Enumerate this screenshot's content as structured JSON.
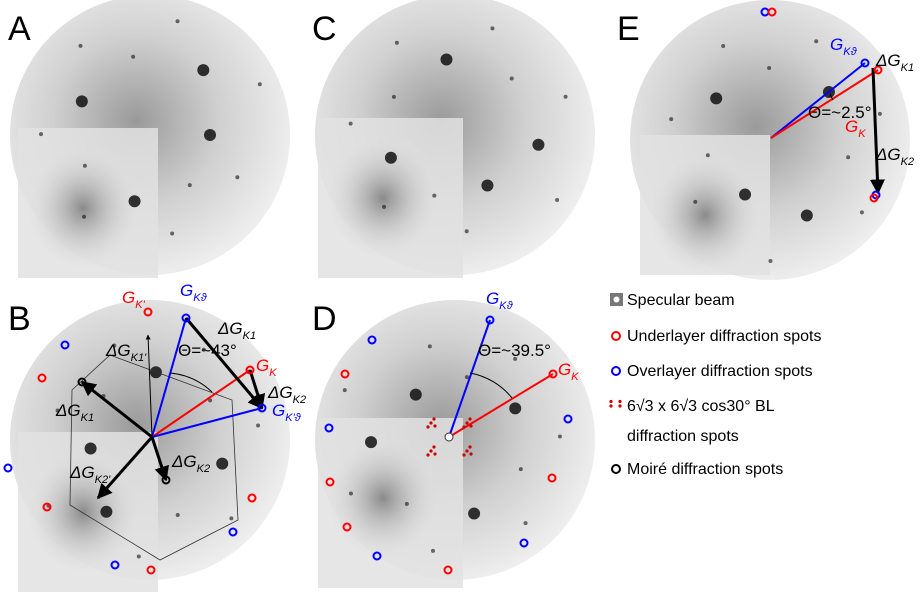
{
  "panels": [
    {
      "letter": "A",
      "labels": []
    },
    {
      "letter": "C",
      "labels": []
    },
    {
      "letter": "E",
      "labels": [
        {
          "main": "G",
          "sub": "Kϑ"
        },
        {
          "main": "ΔG",
          "sub": "K1"
        },
        {
          "text": "Θ=~2.5°"
        },
        {
          "main": "G",
          "sub": "K"
        },
        {
          "main": "ΔG",
          "sub": "K2"
        }
      ]
    },
    {
      "letter": "B",
      "labels": [
        {
          "main": "G",
          "sub": "K'"
        },
        {
          "main": "G",
          "sub": "Kϑ"
        },
        {
          "main": "ΔG",
          "sub": "K1"
        },
        {
          "main": "ΔG",
          "sub": "K1'"
        },
        {
          "text": "Θ=~43°"
        },
        {
          "main": "G",
          "sub": "K"
        },
        {
          "main": "ΔG",
          "sub": "K2"
        },
        {
          "main": "G",
          "sub": "K'ϑ"
        },
        {
          "main": "ΔG",
          "sub": "K1"
        },
        {
          "main": "ΔG",
          "sub": "K2'"
        },
        {
          "main": "ΔG",
          "sub": "K2"
        }
      ]
    },
    {
      "letter": "D",
      "labels": [
        {
          "main": "G",
          "sub": "Kϑ"
        },
        {
          "text": "Θ=~39.5°"
        },
        {
          "main": "G",
          "sub": "K"
        }
      ]
    }
  ],
  "legend": [
    {
      "text": "Specular beam"
    },
    {
      "text": "Underlayer diffraction spots"
    },
    {
      "text": "Overlayer diffraction spots"
    },
    {
      "text": "6√3 x 6√3 cos30° BL",
      "text2": "diffraction spots"
    },
    {
      "text": "Moiré diffraction spots"
    }
  ]
}
